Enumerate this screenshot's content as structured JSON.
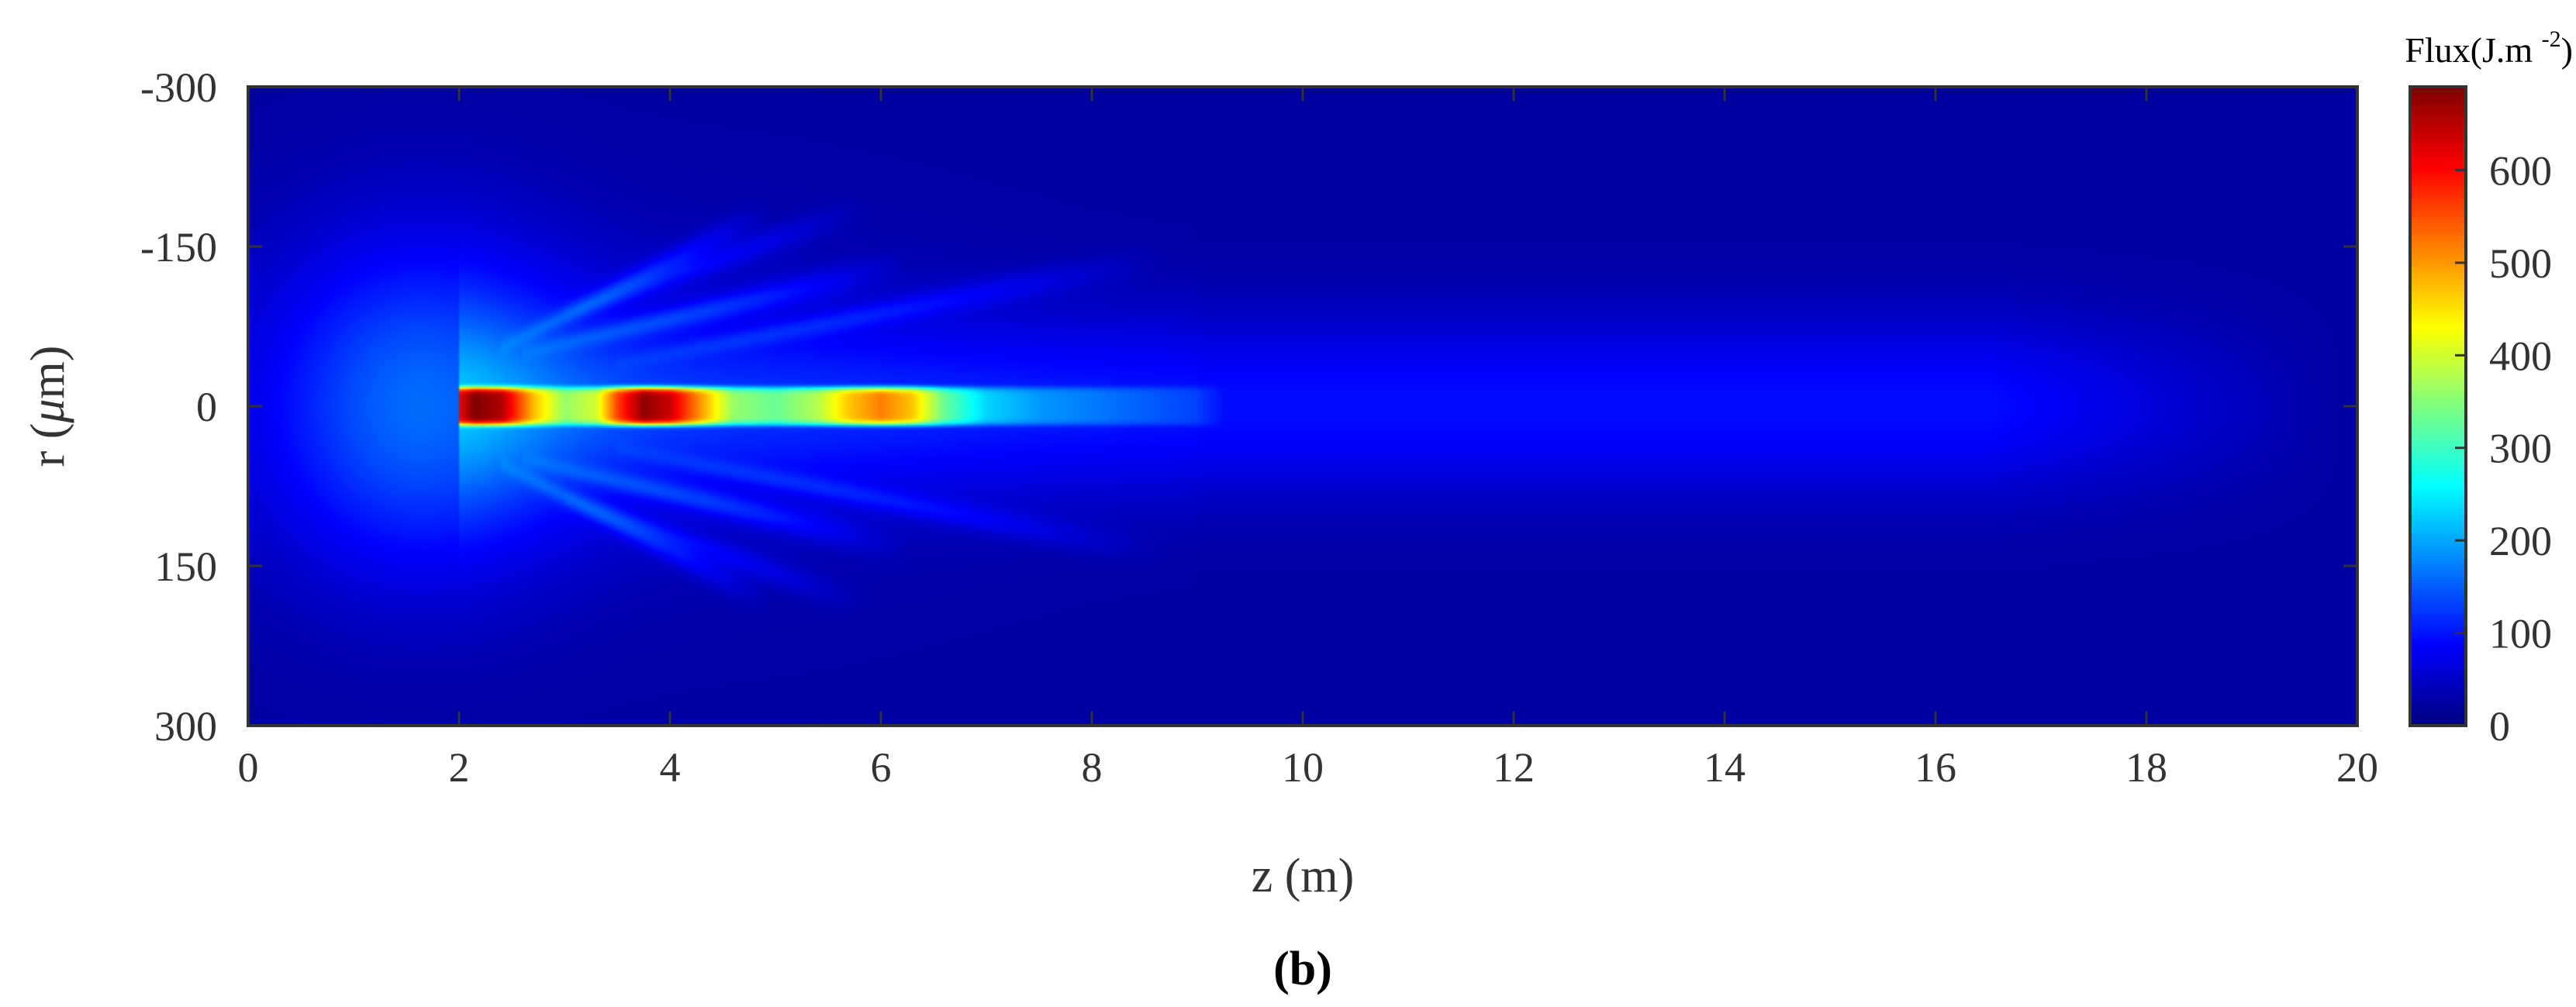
{
  "chart_data": {
    "type": "heatmap",
    "panel_label": "(b)",
    "xlabel": "z (m)",
    "ylabel_prefix": "r (",
    "ylabel_mu": "μ",
    "ylabel_suffix": "m)",
    "xlim": [
      0,
      20
    ],
    "ylim": [
      -300,
      300
    ],
    "y_inverted": true,
    "x_ticks": [
      0,
      2,
      4,
      6,
      8,
      10,
      12,
      14,
      16,
      18,
      20
    ],
    "y_ticks": [
      -300,
      -150,
      0,
      150,
      300
    ],
    "colorbar": {
      "title_prefix": "Flux(J.m ",
      "title_exp": "-2",
      "title_suffix": ")",
      "min": 0,
      "max": 690,
      "ticks": [
        0,
        100,
        200,
        300,
        400,
        500,
        600
      ],
      "colormap": "jet"
    },
    "filament": {
      "start_z": 2.0,
      "radius_um": 18,
      "axial_flux": [
        {
          "z": 2.0,
          "flux": 620
        },
        {
          "z": 2.15,
          "flux": 690
        },
        {
          "z": 2.4,
          "flux": 660
        },
        {
          "z": 2.7,
          "flux": 480
        },
        {
          "z": 3.0,
          "flux": 360
        },
        {
          "z": 3.3,
          "flux": 400
        },
        {
          "z": 3.5,
          "flux": 560
        },
        {
          "z": 3.75,
          "flux": 680
        },
        {
          "z": 4.0,
          "flux": 640
        },
        {
          "z": 4.25,
          "flux": 520
        },
        {
          "z": 4.6,
          "flux": 360
        },
        {
          "z": 5.0,
          "flux": 330
        },
        {
          "z": 5.4,
          "flux": 380
        },
        {
          "z": 5.7,
          "flux": 470
        },
        {
          "z": 6.0,
          "flux": 520
        },
        {
          "z": 6.3,
          "flux": 470
        },
        {
          "z": 6.6,
          "flux": 330
        },
        {
          "z": 7.0,
          "flux": 230
        },
        {
          "z": 7.5,
          "flux": 190
        },
        {
          "z": 8.0,
          "flux": 170
        },
        {
          "z": 8.5,
          "flux": 150
        },
        {
          "z": 9.0,
          "flux": 130
        }
      ]
    },
    "background": {
      "base_flux": 22,
      "glow_center_z": 1.6,
      "glow_peak_flux": 110,
      "tail_flux": 95,
      "tail_end_z": 19.5,
      "tail_width_um": 60
    },
    "side_lobes": [
      {
        "z_start": 2.4,
        "r_start": 55,
        "z_end": 5.5,
        "r_end": 210,
        "flux": 62
      },
      {
        "z_start": 2.6,
        "r_start": 50,
        "z_end": 7.0,
        "r_end": 150,
        "flux": 58
      },
      {
        "z_start": 3.5,
        "r_start": 40,
        "z_end": 9.8,
        "r_end": 160,
        "flux": 45
      },
      {
        "z_start": 3.0,
        "r_start": 85,
        "z_end": 6.5,
        "r_end": 210,
        "flux": 40
      }
    ],
    "colors": {
      "axis": "#333333",
      "background": "#ffffff"
    }
  }
}
